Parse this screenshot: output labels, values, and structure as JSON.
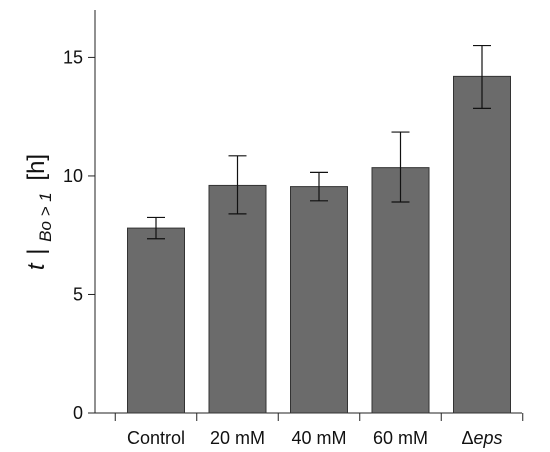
{
  "chart_data": {
    "type": "bar",
    "categories": [
      "Control",
      "20 mM",
      "40 mM",
      "60 mM",
      "Δeps"
    ],
    "category_parts": [
      {
        "prefix": "Control",
        "italic": ""
      },
      {
        "prefix": "20 mM",
        "italic": ""
      },
      {
        "prefix": "40 mM",
        "italic": ""
      },
      {
        "prefix": "60 mM",
        "italic": ""
      },
      {
        "prefix": "Δ",
        "italic": "eps"
      }
    ],
    "values": [
      7.8,
      9.6,
      9.55,
      10.35,
      14.2
    ],
    "error_low": [
      7.35,
      8.4,
      8.95,
      8.9,
      12.85
    ],
    "error_high": [
      8.25,
      10.85,
      10.15,
      11.85,
      15.5
    ],
    "ylim": [
      0,
      17
    ],
    "yticks": [
      0,
      5,
      10,
      15
    ],
    "ylabel": {
      "t": "t",
      "bar": "|",
      "sub": "Bo > 1",
      "unit": "[h]"
    },
    "bar_color": "#6b6b6b",
    "grid": false
  }
}
